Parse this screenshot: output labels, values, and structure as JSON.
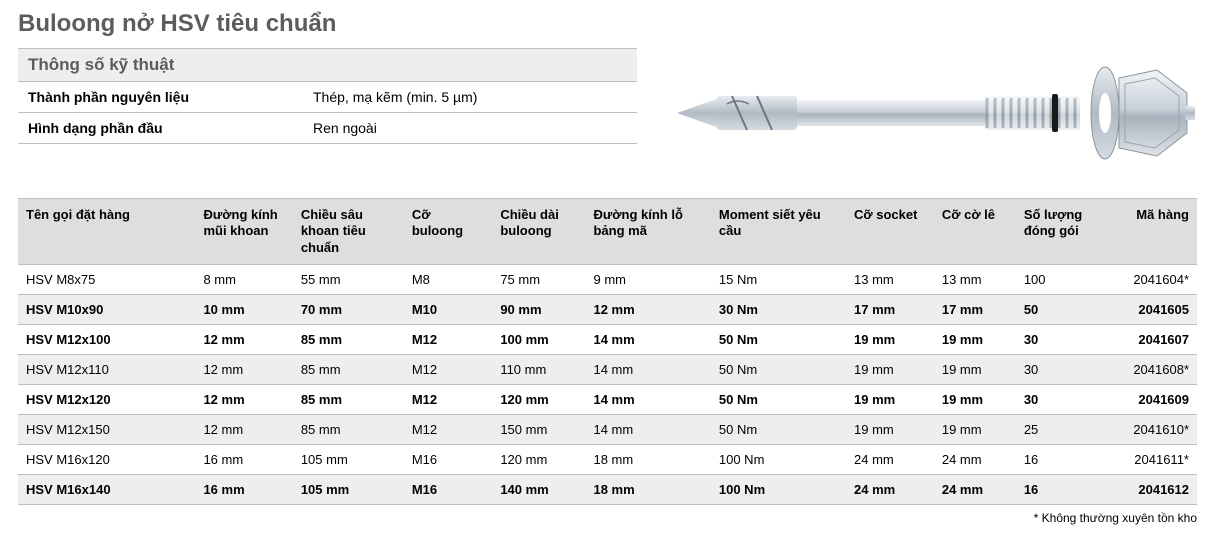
{
  "title": "Buloong nở HSV tiêu chuẩn",
  "spec": {
    "header": "Thông số kỹ thuật",
    "rows": [
      {
        "label": "Thành phần nguyên liệu",
        "value": "Thép, mạ kẽm (min. 5 µm)"
      },
      {
        "label": "Hình dạng phần đầu",
        "value": "Ren ngoài"
      }
    ]
  },
  "table": {
    "columns": [
      {
        "label": "Tên gọi đặt hàng",
        "cls": "col-name"
      },
      {
        "label": "Đường kính mũi khoan",
        "cls": "col-drill"
      },
      {
        "label": "Chiều sâu khoan tiêu chuẩn",
        "cls": "col-depth"
      },
      {
        "label": "Cỡ buloong",
        "cls": "col-size"
      },
      {
        "label": "Chiều dài buloong",
        "cls": "col-len"
      },
      {
        "label": "Đường kính lỗ bảng mã",
        "cls": "col-hole"
      },
      {
        "label": "Moment siết yêu cầu",
        "cls": "col-torque"
      },
      {
        "label": "Cỡ socket",
        "cls": "col-socket"
      },
      {
        "label": "Cỡ cờ lê",
        "cls": "col-wrench"
      },
      {
        "label": "Số lượng đóng gói",
        "cls": "col-qty"
      },
      {
        "label": "Mã hàng",
        "cls": "col-code",
        "right": true
      }
    ],
    "rows": [
      {
        "bold": false,
        "shade": false,
        "cells": [
          "HSV M8x75",
          "8 mm",
          "55 mm",
          "M8",
          "75 mm",
          "9 mm",
          "15 Nm",
          "13 mm",
          "13 mm",
          "100",
          "2041604*"
        ]
      },
      {
        "bold": true,
        "shade": true,
        "cells": [
          "HSV M10x90",
          "10 mm",
          "70 mm",
          "M10",
          "90 mm",
          "12 mm",
          "30 Nm",
          "17 mm",
          "17 mm",
          "50",
          "2041605"
        ]
      },
      {
        "bold": true,
        "shade": false,
        "cells": [
          "HSV M12x100",
          "12 mm",
          "85 mm",
          "M12",
          "100 mm",
          "14 mm",
          "50 Nm",
          "19 mm",
          "19 mm",
          "30",
          "2041607"
        ]
      },
      {
        "bold": false,
        "shade": true,
        "cells": [
          "HSV M12x110",
          "12 mm",
          "85 mm",
          "M12",
          "110 mm",
          "14 mm",
          "50 Nm",
          "19 mm",
          "19 mm",
          "30",
          "2041608*"
        ]
      },
      {
        "bold": true,
        "shade": false,
        "cells": [
          "HSV M12x120",
          "12 mm",
          "85 mm",
          "M12",
          "120 mm",
          "14 mm",
          "50 Nm",
          "19 mm",
          "19 mm",
          "30",
          "2041609"
        ]
      },
      {
        "bold": false,
        "shade": true,
        "cells": [
          "HSV M12x150",
          "12 mm",
          "85 mm",
          "M12",
          "150 mm",
          "14 mm",
          "50 Nm",
          "19 mm",
          "19 mm",
          "25",
          "2041610*"
        ]
      },
      {
        "bold": false,
        "shade": false,
        "cells": [
          "HSV M16x120",
          "16 mm",
          "105 mm",
          "M16",
          "120 mm",
          "18 mm",
          "100 Nm",
          "24 mm",
          "24 mm",
          "16",
          "2041611*"
        ]
      },
      {
        "bold": true,
        "shade": true,
        "cells": [
          "HSV M16x140",
          "16 mm",
          "105 mm",
          "M16",
          "140 mm",
          "18 mm",
          "100 Nm",
          "24 mm",
          "24 mm",
          "16",
          "2041612"
        ]
      }
    ]
  },
  "footnote": "* Không thường xuyên tồn kho",
  "colors": {
    "header_bg": "#dedede",
    "shade_bg": "#eeeeee",
    "border": "#bfbfbf",
    "title": "#5c5c5c"
  }
}
